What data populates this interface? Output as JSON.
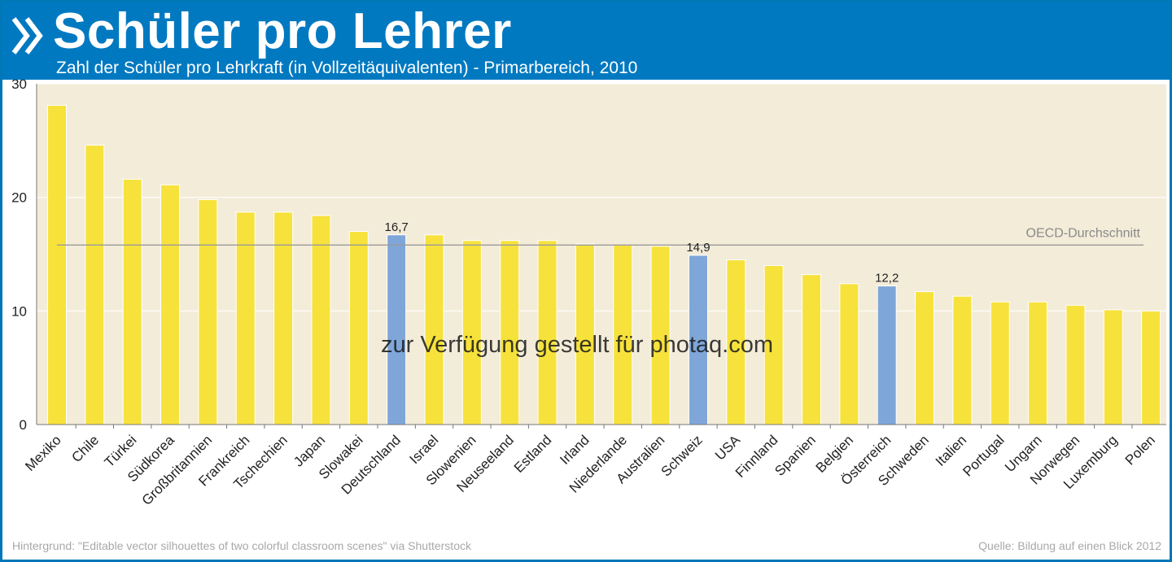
{
  "header": {
    "title": "Schüler pro Lehrer",
    "subtitle": "Zahl der Schüler pro Lehrkraft (in Vollzeitäquivalenten) - Primarbereich, 2010"
  },
  "chart_data": {
    "type": "bar",
    "categories": [
      "Mexiko",
      "Chile",
      "Türkei",
      "Südkorea",
      "Großbritannien",
      "Frankreich",
      "Tschechien",
      "Japan",
      "Slowakei",
      "Deutschland",
      "Israel",
      "Slowenien",
      "Neuseeland",
      "Estland",
      "Irland",
      "Niederlande",
      "Australien",
      "Schweiz",
      "USA",
      "Finnland",
      "Spanien",
      "Belgien",
      "Österreich",
      "Schweden",
      "Italien",
      "Portugal",
      "Ungarn",
      "Norwegen",
      "Luxemburg",
      "Polen"
    ],
    "values": [
      28.1,
      24.6,
      21.6,
      21.1,
      19.8,
      18.7,
      18.7,
      18.4,
      17.0,
      16.7,
      16.7,
      16.2,
      16.2,
      16.2,
      15.9,
      15.8,
      15.7,
      14.9,
      14.5,
      14.0,
      13.2,
      12.4,
      12.2,
      11.7,
      11.3,
      10.8,
      10.8,
      10.5,
      10.1,
      10.0
    ],
    "highlighted": [
      "Deutschland",
      "Schweiz",
      "Österreich"
    ],
    "data_labels": [
      {
        "category": "Deutschland",
        "text": "16,7"
      },
      {
        "category": "Schweiz",
        "text": "14,9"
      },
      {
        "category": "Österreich",
        "text": "12,2"
      }
    ],
    "reference_line": {
      "label": "OECD-Durchschnitt",
      "value": 15.8
    },
    "yticks": [
      "0",
      "10",
      "20",
      "30"
    ],
    "ylim": [
      0,
      30
    ],
    "grid": true,
    "colors": {
      "bar": "#f7e23c",
      "highlight": "#7fa6d9",
      "plot_bg": "#f3ecd9",
      "reference_line": "#9a9a9a"
    }
  },
  "footer": {
    "left": "Hintergrund: \"Editable vector silhouettes of two colorful classroom scenes\" via Shutterstock",
    "right": "Quelle: Bildung auf einen Blick 2012"
  },
  "watermark": "zur Verfügung gestellt für photaq.com"
}
